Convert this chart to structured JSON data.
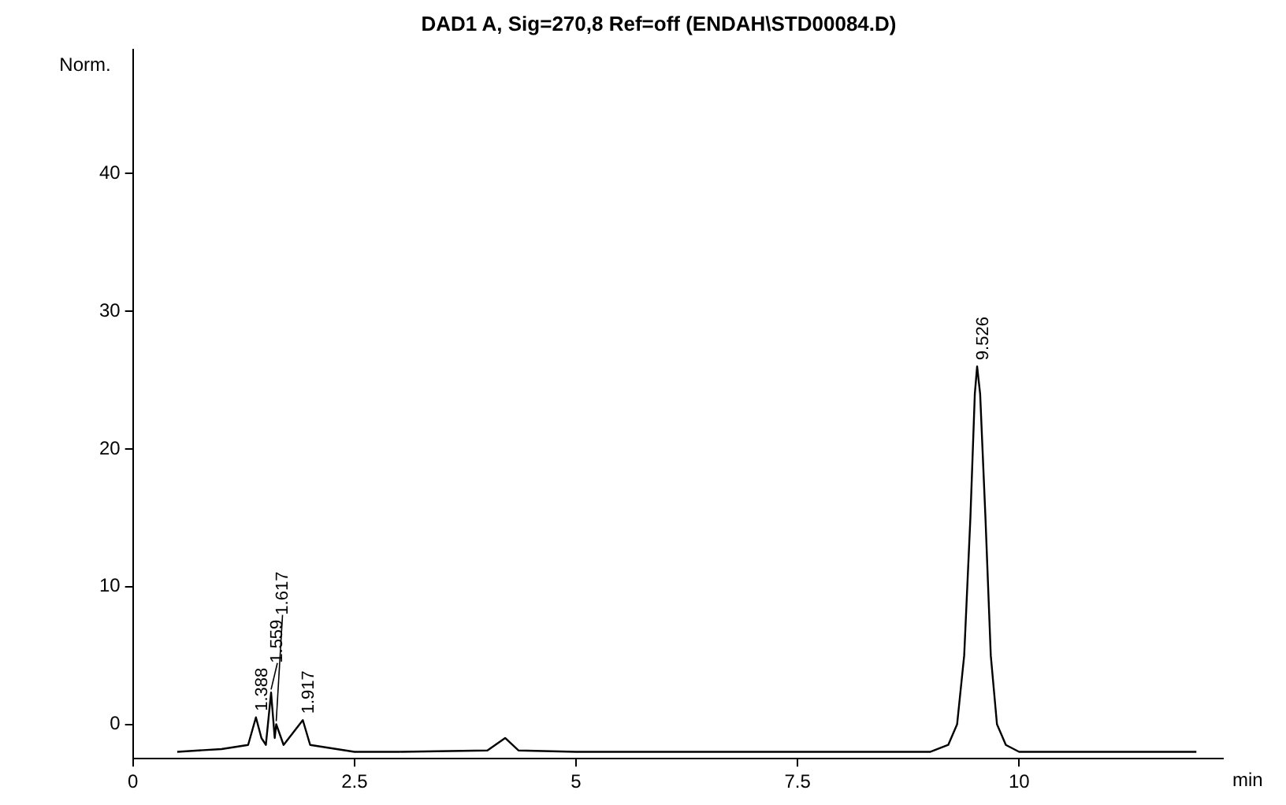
{
  "chart_data": {
    "type": "line",
    "title": "DAD1 A, Sig=270,8 Ref=off (ENDAH\\STD00084.D)",
    "xlabel": "min",
    "ylabel": "Norm.",
    "x": [
      0.5,
      1.0,
      1.3,
      1.388,
      1.45,
      1.5,
      1.559,
      1.6,
      1.617,
      1.7,
      1.917,
      2.0,
      2.2,
      2.5,
      3.0,
      4.0,
      4.2,
      4.35,
      5.0,
      7.5,
      9.0,
      9.2,
      9.3,
      9.38,
      9.45,
      9.5,
      9.526,
      9.56,
      9.62,
      9.68,
      9.75,
      9.85,
      10.0,
      11.0,
      12.0
    ],
    "series": [
      {
        "color": "#000000",
        "values": [
          -2,
          -1.8,
          -1.5,
          0.5,
          -1,
          -1.5,
          2.3,
          -1,
          0,
          -1.5,
          0.3,
          -1.5,
          -1.7,
          -2,
          -2,
          -1.9,
          -1,
          -1.9,
          -2,
          -2,
          -2,
          -1.5,
          0,
          5,
          15,
          24,
          26,
          24,
          15,
          5,
          0,
          -1.5,
          -2,
          -2,
          -2
        ]
      }
    ],
    "xlim": [
      0,
      12.3
    ],
    "xticks": [
      0,
      2.5,
      5,
      7.5,
      10
    ],
    "ylim": [
      -2.5,
      49
    ],
    "yticks": [
      0,
      10,
      20,
      30,
      40
    ],
    "annotations": [
      {
        "text": "1.388",
        "x": 1.388,
        "y": 0.5
      },
      {
        "text": "1.559",
        "x": 1.559,
        "y": 2.3
      },
      {
        "text": "1.617",
        "x": 1.617,
        "y": 0
      },
      {
        "text": "1.917",
        "x": 1.917,
        "y": 0.3
      },
      {
        "text": "9.526",
        "x": 9.526,
        "y": 26
      }
    ],
    "grid": false,
    "legend": false,
    "marker": "none",
    "line_style": "solid"
  }
}
